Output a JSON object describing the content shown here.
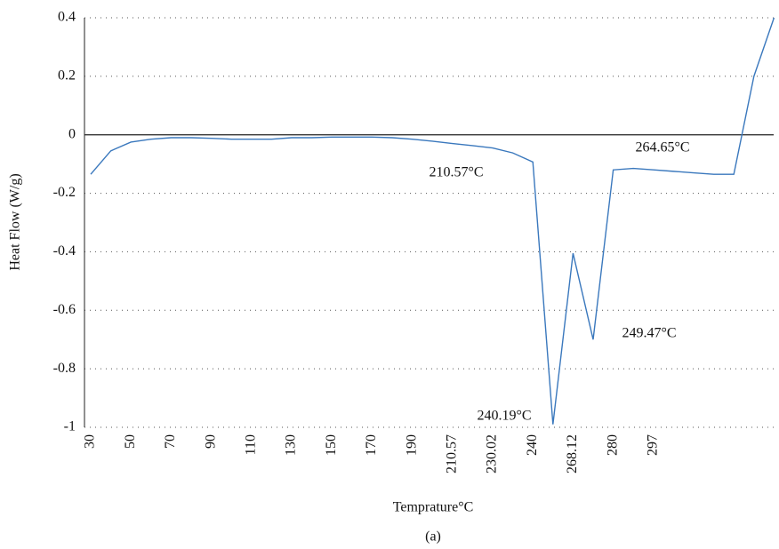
{
  "chart_data": {
    "type": "line",
    "x_label": "Temprature°C",
    "y_label": "Heat Flow (W/g)",
    "caption": "(a)",
    "annotations": [
      "210.57°C",
      "264.65°C",
      "249.47°C",
      "240.19°C"
    ],
    "categories": [
      "30",
      null,
      "50",
      null,
      "70",
      null,
      "90",
      null,
      "110",
      null,
      "130",
      null,
      "150",
      null,
      "170",
      null,
      "190",
      null,
      "210.57",
      null,
      "230.02",
      null,
      "240",
      null,
      "268.12",
      null,
      "280",
      null,
      "297",
      null,
      null,
      null,
      null,
      null,
      null
    ],
    "series": [
      {
        "name": "Heat Flow",
        "color": "#3a78bd",
        "values": [
          -0.135,
          -0.055,
          -0.025,
          -0.015,
          -0.01,
          -0.01,
          -0.012,
          -0.015,
          -0.015,
          -0.015,
          -0.01,
          -0.01,
          -0.008,
          -0.008,
          -0.008,
          -0.01,
          -0.015,
          -0.022,
          -0.03,
          -0.037,
          -0.045,
          -0.062,
          -0.093,
          -0.99,
          -0.405,
          -0.7,
          -0.12,
          -0.115,
          -0.12,
          -0.125,
          -0.13,
          -0.135,
          -0.135,
          0.2,
          0.4
        ]
      }
    ],
    "ylim": [
      -1,
      0.4
    ],
    "yticks": [
      0.4,
      0.2,
      0,
      -0.2,
      -0.4,
      -0.6,
      -0.8,
      -1
    ],
    "grid": true
  }
}
